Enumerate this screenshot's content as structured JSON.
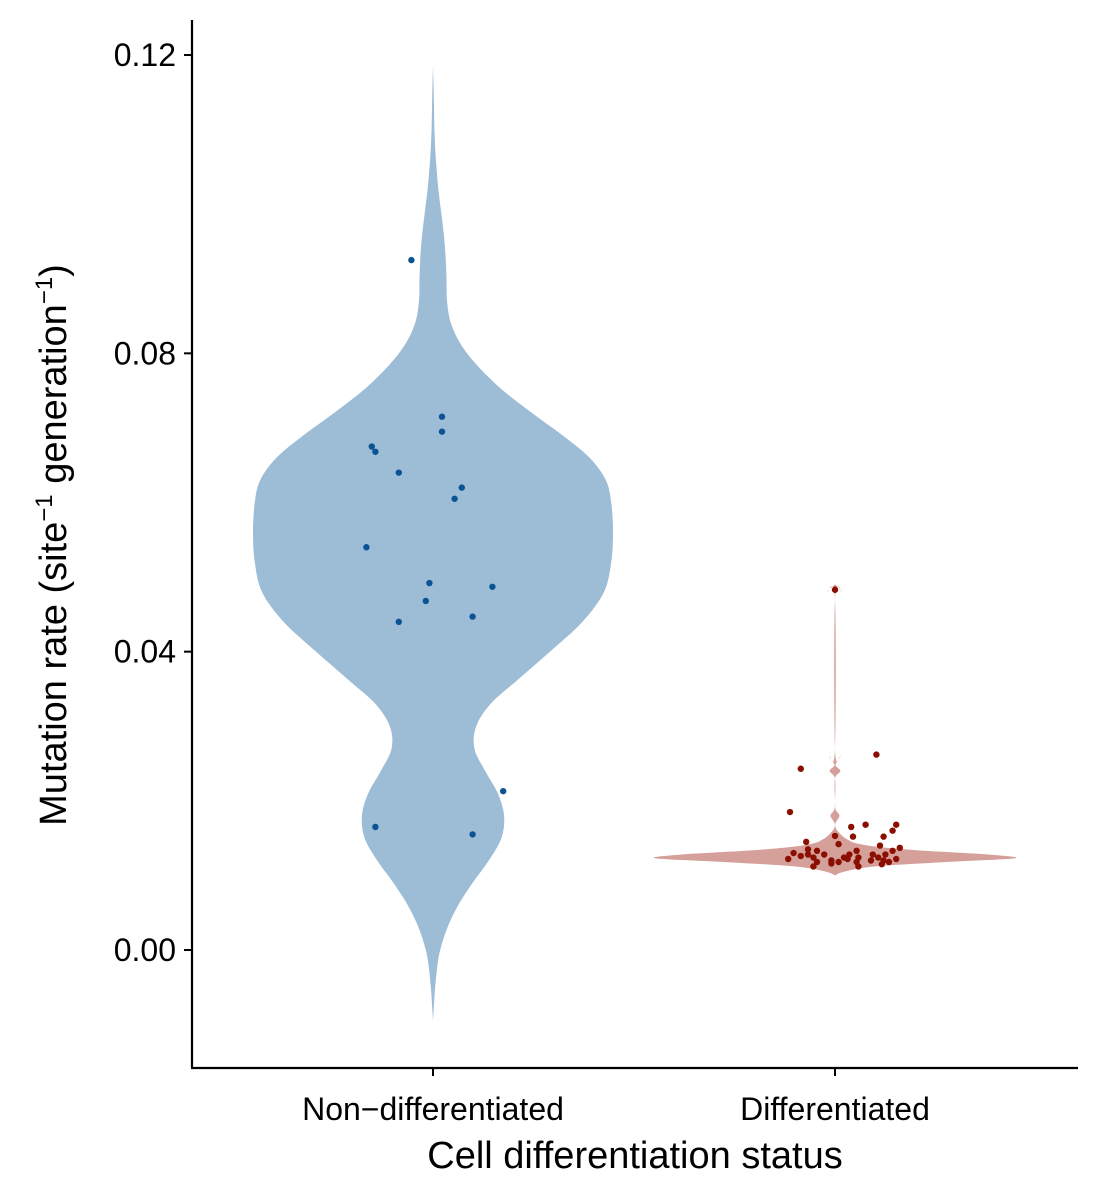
{
  "chart_data": {
    "type": "violin",
    "title": "",
    "xlabel": "Cell differentiation status",
    "ylabel": {
      "prefix": "Mutation rate (site",
      "sup1": "−1",
      "middle": " generation",
      "sup2": "−1",
      "suffix": ")"
    },
    "ylim": [
      -0.016,
      0.124
    ],
    "yticks": [
      {
        "value": 0.0,
        "label": "0.00"
      },
      {
        "value": 0.04,
        "label": "0.04"
      },
      {
        "value": 0.08,
        "label": "0.08"
      },
      {
        "value": 0.12,
        "label": "0.12"
      }
    ],
    "categories": [
      "Non−differentiated",
      "Differentiated"
    ],
    "grid": false,
    "legend": "none",
    "series": [
      {
        "category_index": 0,
        "fill": "#9dbcd6",
        "point_color": "#0b5394",
        "density": [
          [
            -0.0095,
            0.0
          ],
          [
            -0.0075,
            0.005
          ],
          [
            -0.005,
            0.012
          ],
          [
            -0.002,
            0.025
          ],
          [
            0.0,
            0.04
          ],
          [
            0.003,
            0.08
          ],
          [
            0.006,
            0.14
          ],
          [
            0.009,
            0.22
          ],
          [
            0.012,
            0.31
          ],
          [
            0.015,
            0.38
          ],
          [
            0.018,
            0.395
          ],
          [
            0.021,
            0.36
          ],
          [
            0.024,
            0.29
          ],
          [
            0.027,
            0.23
          ],
          [
            0.03,
            0.24
          ],
          [
            0.033,
            0.32
          ],
          [
            0.036,
            0.46
          ],
          [
            0.04,
            0.65
          ],
          [
            0.044,
            0.83
          ],
          [
            0.048,
            0.95
          ],
          [
            0.052,
            0.99
          ],
          [
            0.056,
            1.0
          ],
          [
            0.06,
            0.99
          ],
          [
            0.063,
            0.96
          ],
          [
            0.066,
            0.87
          ],
          [
            0.069,
            0.72
          ],
          [
            0.072,
            0.55
          ],
          [
            0.075,
            0.39
          ],
          [
            0.078,
            0.26
          ],
          [
            0.081,
            0.16
          ],
          [
            0.084,
            0.1
          ],
          [
            0.087,
            0.078
          ],
          [
            0.09,
            0.075
          ],
          [
            0.093,
            0.07
          ],
          [
            0.096,
            0.06
          ],
          [
            0.099,
            0.045
          ],
          [
            0.102,
            0.03
          ],
          [
            0.106,
            0.016
          ],
          [
            0.11,
            0.008
          ],
          [
            0.115,
            0.004
          ],
          [
            0.1185,
            0.0
          ]
        ],
        "points": [
          {
            "jitter": -0.12,
            "y": 0.0925
          },
          {
            "jitter": 0.05,
            "y": 0.0715
          },
          {
            "jitter": 0.05,
            "y": 0.0695
          },
          {
            "jitter": -0.34,
            "y": 0.0675
          },
          {
            "jitter": -0.32,
            "y": 0.0668
          },
          {
            "jitter": -0.19,
            "y": 0.064
          },
          {
            "jitter": 0.16,
            "y": 0.062
          },
          {
            "jitter": 0.12,
            "y": 0.0605
          },
          {
            "jitter": -0.37,
            "y": 0.054
          },
          {
            "jitter": -0.02,
            "y": 0.0492
          },
          {
            "jitter": 0.33,
            "y": 0.0487
          },
          {
            "jitter": -0.04,
            "y": 0.0468
          },
          {
            "jitter": 0.22,
            "y": 0.0447
          },
          {
            "jitter": -0.19,
            "y": 0.044
          },
          {
            "jitter": 0.39,
            "y": 0.0213
          },
          {
            "jitter": -0.32,
            "y": 0.0165
          },
          {
            "jitter": 0.22,
            "y": 0.0155
          }
        ]
      },
      {
        "category_index": 1,
        "fill": "#d59f9a",
        "point_color": "#8b0f00",
        "density": [
          [
            0.01,
            0.0
          ],
          [
            0.0105,
            0.05
          ],
          [
            0.0112,
            0.22
          ],
          [
            0.0118,
            0.62
          ],
          [
            0.0123,
            1.0
          ],
          [
            0.0128,
            0.85
          ],
          [
            0.0133,
            0.5
          ],
          [
            0.0138,
            0.25
          ],
          [
            0.0143,
            0.12
          ],
          [
            0.0148,
            0.07
          ],
          [
            0.0153,
            0.04
          ],
          [
            0.0158,
            0.02
          ],
          [
            0.0163,
            0.005
          ],
          [
            0.017,
            0.002
          ],
          [
            0.018,
            0.025
          ],
          [
            0.0188,
            0.004
          ],
          [
            0.02,
            0.0
          ],
          [
            0.023,
            0.0
          ],
          [
            0.024,
            0.03
          ],
          [
            0.0248,
            0.003
          ],
          [
            0.026,
            0.03
          ],
          [
            0.027,
            0.0
          ],
          [
            0.047,
            0.0
          ],
          [
            0.048,
            0.04
          ],
          [
            0.049,
            0.0
          ]
        ],
        "points": [
          {
            "jitter": 0.0,
            "y": 0.0483
          },
          {
            "jitter": 0.23,
            "y": 0.0262
          },
          {
            "jitter": -0.19,
            "y": 0.0243
          },
          {
            "jitter": -0.25,
            "y": 0.0185
          },
          {
            "jitter": 0.17,
            "y": 0.0168
          },
          {
            "jitter": 0.34,
            "y": 0.0168
          },
          {
            "jitter": 0.09,
            "y": 0.0165
          },
          {
            "jitter": 0.32,
            "y": 0.016
          },
          {
            "jitter": 0.0,
            "y": 0.0153
          },
          {
            "jitter": 0.1,
            "y": 0.0152
          },
          {
            "jitter": 0.27,
            "y": 0.0152
          },
          {
            "jitter": -0.16,
            "y": 0.0145
          },
          {
            "jitter": 0.02,
            "y": 0.0142
          },
          {
            "jitter": 0.25,
            "y": 0.014
          },
          {
            "jitter": 0.36,
            "y": 0.0137
          },
          {
            "jitter": -0.15,
            "y": 0.0135
          },
          {
            "jitter": -0.1,
            "y": 0.0133
          },
          {
            "jitter": 0.12,
            "y": 0.0133
          },
          {
            "jitter": 0.32,
            "y": 0.0133
          },
          {
            "jitter": -0.23,
            "y": 0.013
          },
          {
            "jitter": -0.15,
            "y": 0.0128
          },
          {
            "jitter": -0.06,
            "y": 0.0128
          },
          {
            "jitter": 0.08,
            "y": 0.0128
          },
          {
            "jitter": 0.21,
            "y": 0.0128
          },
          {
            "jitter": 0.28,
            "y": 0.0128
          },
          {
            "jitter": -0.19,
            "y": 0.0126
          },
          {
            "jitter": -0.12,
            "y": 0.0124
          },
          {
            "jitter": 0.05,
            "y": 0.0124
          },
          {
            "jitter": 0.13,
            "y": 0.0124
          },
          {
            "jitter": 0.24,
            "y": 0.0124
          },
          {
            "jitter": -0.26,
            "y": 0.0122
          },
          {
            "jitter": 0.07,
            "y": 0.0122
          },
          {
            "jitter": 0.34,
            "y": 0.0122
          },
          {
            "jitter": -0.02,
            "y": 0.012
          },
          {
            "jitter": 0.2,
            "y": 0.012
          },
          {
            "jitter": 0.27,
            "y": 0.012
          },
          {
            "jitter": -0.1,
            "y": 0.0118
          },
          {
            "jitter": 0.12,
            "y": 0.0118
          },
          {
            "jitter": 0.3,
            "y": 0.0118
          },
          {
            "jitter": -0.02,
            "y": 0.0116
          },
          {
            "jitter": 0.02,
            "y": 0.0118
          },
          {
            "jitter": 0.13,
            "y": 0.0112
          },
          {
            "jitter": 0.26,
            "y": 0.0115
          },
          {
            "jitter": -0.12,
            "y": 0.0112
          }
        ]
      }
    ]
  }
}
